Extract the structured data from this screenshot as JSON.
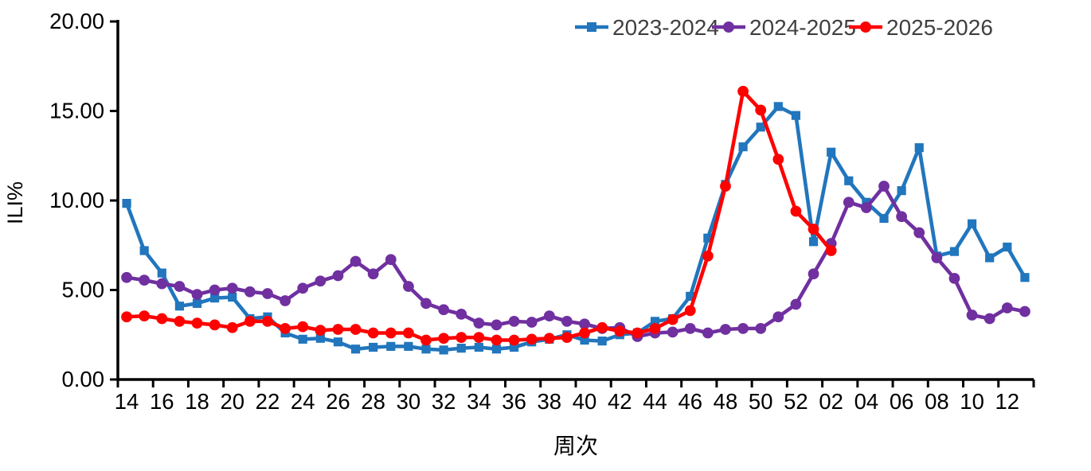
{
  "chart_data": {
    "type": "line",
    "title": "",
    "xlabel": "周次",
    "ylabel": "ILI%",
    "ylim": [
      0,
      20
    ],
    "yticks": [
      0,
      5,
      10,
      15,
      20
    ],
    "ytick_labels": [
      "0.00",
      "5.00",
      "10.00",
      "15.00",
      "20.00"
    ],
    "grid": false,
    "legend_position": "top-right",
    "label_every": 2,
    "categories": [
      "14",
      "15",
      "16",
      "17",
      "18",
      "19",
      "20",
      "21",
      "22",
      "23",
      "24",
      "25",
      "26",
      "27",
      "28",
      "29",
      "30",
      "31",
      "32",
      "33",
      "34",
      "35",
      "36",
      "37",
      "38",
      "39",
      "40",
      "41",
      "42",
      "43",
      "44",
      "45",
      "46",
      "47",
      "48",
      "49",
      "50",
      "51",
      "52",
      "01",
      "02",
      "03",
      "04",
      "05",
      "06",
      "07",
      "08",
      "09",
      "10",
      "11",
      "12",
      "13"
    ],
    "series": [
      {
        "name": "2023-2024",
        "color": "#2176BD",
        "marker": "square",
        "values": [
          9.84,
          7.2,
          5.95,
          4.1,
          4.25,
          4.55,
          4.6,
          3.4,
          3.5,
          2.6,
          2.25,
          2.3,
          2.1,
          1.7,
          1.8,
          1.85,
          1.85,
          1.7,
          1.65,
          1.75,
          1.8,
          1.7,
          1.8,
          2.1,
          2.25,
          2.5,
          2.2,
          2.15,
          2.5,
          2.6,
          3.25,
          3.4,
          4.65,
          7.9,
          10.9,
          13.0,
          14.1,
          15.25,
          14.75,
          7.7,
          12.7,
          11.1,
          9.9,
          9.0,
          10.55,
          12.95,
          6.9,
          7.15,
          8.7,
          6.8,
          7.4,
          5.7
        ]
      },
      {
        "name": "2024-2025",
        "color": "#7030A0",
        "marker": "circle",
        "values": [
          5.7,
          5.55,
          5.35,
          5.2,
          4.75,
          5.0,
          5.1,
          4.9,
          4.8,
          4.4,
          5.1,
          5.5,
          5.8,
          6.6,
          5.9,
          6.7,
          5.2,
          4.25,
          3.9,
          3.65,
          3.15,
          3.05,
          3.25,
          3.2,
          3.55,
          3.25,
          3.1,
          2.85,
          2.9,
          2.4,
          2.6,
          2.65,
          2.85,
          2.6,
          2.8,
          2.85,
          2.85,
          3.5,
          4.2,
          5.9,
          7.6,
          9.9,
          9.6,
          10.8,
          9.1,
          8.2,
          6.8,
          5.65,
          3.6,
          3.4,
          4.0,
          3.8
        ]
      },
      {
        "name": "2025-2026",
        "color": "#FF0000",
        "marker": "circle",
        "values": [
          3.5,
          3.55,
          3.4,
          3.25,
          3.15,
          3.05,
          2.9,
          3.25,
          3.25,
          2.85,
          2.95,
          2.75,
          2.8,
          2.8,
          2.6,
          2.6,
          2.6,
          2.2,
          2.3,
          2.35,
          2.35,
          2.2,
          2.2,
          2.25,
          2.3,
          2.35,
          2.6,
          2.9,
          2.7,
          2.6,
          2.85,
          3.35,
          3.85,
          6.9,
          10.8,
          16.1,
          15.05,
          12.3,
          9.4,
          8.4,
          7.2,
          null,
          null,
          null,
          null,
          null,
          null,
          null,
          null,
          null,
          null,
          null
        ]
      }
    ],
    "styles": {
      "axis_color": "#000000",
      "tick_label_color": "#000000",
      "legend_text_color": "#404040",
      "background": "#ffffff"
    }
  }
}
